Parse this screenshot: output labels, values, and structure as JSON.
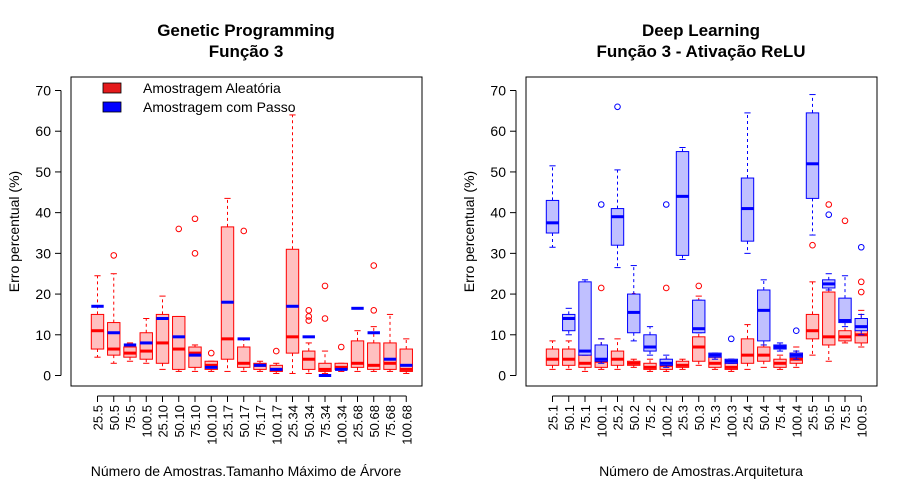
{
  "colors": {
    "aleatoria_fill": "#ffc0c0",
    "aleatoria_stroke": "#ff0000",
    "passo_fill": "#c0c0ff",
    "passo_stroke": "#0000ff",
    "aleatoria_legend": "#e41a1c",
    "passo_legend": "#0000ff"
  },
  "chart_data": [
    {
      "type": "boxplot",
      "title": [
        "Genetic Programming",
        "Função 3"
      ],
      "xlabel": "Número de Amostras.Tamanho Máximo de Árvore",
      "ylabel": "Erro percentual (%)",
      "ylim": [
        0,
        70
      ],
      "yticks": [
        0,
        10,
        20,
        30,
        40,
        50,
        60,
        70
      ],
      "legend": {
        "position": "top-left",
        "entries": [
          "Amostragem Aleatória",
          "Amostragem com Passo"
        ]
      },
      "categories": [
        "25.5",
        "50.5",
        "75.5",
        "100.5",
        "25.10",
        "50.10",
        "75.10",
        "100.10",
        "25.17",
        "50.17",
        "75.17",
        "100.17",
        "25.34",
        "50.34",
        "75.34",
        "100.34",
        "25.68",
        "50.68",
        "75.68",
        "100.68"
      ],
      "series": [
        {
          "name": "Amostragem Aleatória",
          "boxes": [
            {
              "min": 4.5,
              "q1": 6.5,
              "median": 11,
              "q3": 15,
              "max": 24.5,
              "outliers": []
            },
            {
              "min": 3,
              "q1": 5,
              "median": 6.5,
              "q3": 13,
              "max": 25,
              "outliers": [
                29.5
              ]
            },
            {
              "min": 3.5,
              "q1": 4.5,
              "median": 5.5,
              "q3": 7,
              "max": 8,
              "outliers": []
            },
            {
              "min": 3,
              "q1": 4,
              "median": 6,
              "q3": 10.5,
              "max": 14,
              "outliers": []
            },
            {
              "min": 1.5,
              "q1": 3,
              "median": 8,
              "q3": 15,
              "max": 19.5,
              "outliers": []
            },
            {
              "min": 1,
              "q1": 1.5,
              "median": 6.5,
              "q3": 14.5,
              "max": 14.5,
              "outliers": [
                36
              ]
            },
            {
              "min": 1,
              "q1": 2,
              "median": 5.5,
              "q3": 7,
              "max": 7.5,
              "outliers": [
                30,
                38.5
              ]
            },
            {
              "min": 1,
              "q1": 1.5,
              "median": 2.5,
              "q3": 3.5,
              "max": 3.5,
              "outliers": [
                5.5
              ]
            },
            {
              "min": 1,
              "q1": 4,
              "median": 9,
              "q3": 36.5,
              "max": 43.5,
              "outliers": []
            },
            {
              "min": 1,
              "q1": 2,
              "median": 3,
              "q3": 7,
              "max": 9,
              "outliers": [
                35.5
              ]
            },
            {
              "min": 1,
              "q1": 1.5,
              "median": 2.5,
              "q3": 3,
              "max": 3.5,
              "outliers": []
            },
            {
              "min": 0.5,
              "q1": 1,
              "median": 1.5,
              "q3": 2.5,
              "max": 3,
              "outliers": [
                6
              ]
            },
            {
              "min": 0.5,
              "q1": 5.5,
              "median": 9.5,
              "q3": 31,
              "max": 64,
              "outliers": []
            },
            {
              "min": 0.5,
              "q1": 1.5,
              "median": 4,
              "q3": 6,
              "max": 8,
              "outliers": [
                13.5,
                14.5,
                16
              ]
            },
            {
              "min": 0.5,
              "q1": 1,
              "median": 1.5,
              "q3": 3,
              "max": 6,
              "outliers": [
                14,
                22
              ]
            },
            {
              "min": 1,
              "q1": 1.5,
              "median": 2,
              "q3": 3,
              "max": 3,
              "outliers": [
                7
              ]
            },
            {
              "min": 1,
              "q1": 2,
              "median": 3,
              "q3": 8.5,
              "max": 11,
              "outliers": []
            },
            {
              "min": 1,
              "q1": 1.5,
              "median": 2.5,
              "q3": 8,
              "max": 12,
              "outliers": [
                16,
                27
              ]
            },
            {
              "min": 1,
              "q1": 1.5,
              "median": 3,
              "q3": 8,
              "max": 15,
              "outliers": []
            },
            {
              "min": 0.5,
              "q1": 1,
              "median": 1.5,
              "q3": 6.5,
              "max": 9,
              "outliers": []
            }
          ]
        },
        {
          "name": "Amostragem com Passo",
          "values": [
            17,
            10.5,
            7.5,
            8,
            14,
            9.5,
            5,
            2,
            18,
            9,
            2.5,
            1.5,
            17,
            9.5,
            0,
            1.5,
            16.5,
            10.5,
            4,
            2.5
          ]
        }
      ]
    },
    {
      "type": "boxplot",
      "title": [
        "Deep Learning",
        "Função 3 - Ativação ReLU"
      ],
      "xlabel": "Número de Amostras.Arquitetura",
      "ylabel": "Erro percentual (%)",
      "ylim": [
        0,
        70
      ],
      "yticks": [
        0,
        10,
        20,
        30,
        40,
        50,
        60,
        70
      ],
      "categories": [
        "25.1",
        "50.1",
        "75.1",
        "100.1",
        "25.2",
        "50.2",
        "75.2",
        "100.2",
        "25.3",
        "50.3",
        "75.3",
        "100.3",
        "25.4",
        "50.4",
        "75.4",
        "100.4",
        "25.5",
        "50.5",
        "75.5",
        "100.5"
      ],
      "series": [
        {
          "name": "Amostragem Aleatória",
          "boxes": [
            {
              "min": 1.5,
              "q1": 2.5,
              "median": 4,
              "q3": 6.5,
              "max": 8.5,
              "outliers": []
            },
            {
              "min": 1.5,
              "q1": 2.5,
              "median": 4,
              "q3": 6.5,
              "max": 8.5,
              "outliers": []
            },
            {
              "min": 1,
              "q1": 2,
              "median": 3,
              "q3": 5,
              "max": 7,
              "outliers": [
                21.5
              ]
            },
            {
              "min": 1.5,
              "q1": 2,
              "median": 3.5,
              "q3": 6,
              "max": 9,
              "outliers": [
                21.5
              ]
            },
            {
              "min": 1.5,
              "q1": 2.5,
              "median": 4,
              "q3": 6,
              "max": 9,
              "outliers": []
            },
            {
              "min": 2,
              "q1": 2.5,
              "median": 3,
              "q3": 3.5,
              "max": 4,
              "outliers": [
                19.5
              ]
            },
            {
              "min": 1,
              "q1": 1.5,
              "median": 2,
              "q3": 3,
              "max": 4,
              "outliers": [
                7
              ]
            },
            {
              "min": 1,
              "q1": 1.5,
              "median": 2.5,
              "q3": 3.5,
              "max": 4,
              "outliers": [
                21.5
              ]
            },
            {
              "min": 1.5,
              "q1": 2,
              "median": 2.5,
              "q3": 3.5,
              "max": 4,
              "outliers": []
            },
            {
              "min": 2.5,
              "q1": 3.5,
              "median": 7,
              "q3": 9.5,
              "max": 19.5,
              "outliers": [
                22
              ]
            },
            {
              "min": 1.5,
              "q1": 2,
              "median": 3,
              "q3": 4.5,
              "max": 5,
              "outliers": []
            },
            {
              "min": 1,
              "q1": 1.5,
              "median": 2,
              "q3": 3,
              "max": 4,
              "outliers": []
            },
            {
              "min": 1.5,
              "q1": 3,
              "median": 5,
              "q3": 9,
              "max": 12.5,
              "outliers": []
            },
            {
              "min": 2,
              "q1": 3.5,
              "median": 5,
              "q3": 7,
              "max": 9,
              "outliers": [
                18
              ]
            },
            {
              "min": 1.5,
              "q1": 2,
              "median": 3,
              "q3": 4,
              "max": 5,
              "outliers": []
            },
            {
              "min": 2,
              "q1": 3,
              "median": 4,
              "q3": 5.5,
              "max": 7,
              "outliers": []
            },
            {
              "min": 5,
              "q1": 9,
              "median": 11,
              "q3": 15,
              "max": 23,
              "outliers": [
                32
              ]
            },
            {
              "min": 3.5,
              "q1": 7.5,
              "median": 9.5,
              "q3": 20.5,
              "max": 22.5,
              "outliers": [
                42
              ]
            },
            {
              "min": 8,
              "q1": 8.5,
              "median": 9.5,
              "q3": 11,
              "max": 13,
              "outliers": [
                15,
                38
              ]
            },
            {
              "min": 7,
              "q1": 8,
              "median": 10,
              "q3": 13,
              "max": 16,
              "outliers": [
                20.5,
                23
              ]
            }
          ]
        },
        {
          "name": "Amostragem com Passo",
          "boxes": [
            {
              "min": 31.5,
              "q1": 35,
              "median": 37.5,
              "q3": 43,
              "max": 51.5,
              "outliers": []
            },
            {
              "min": 10,
              "q1": 11,
              "median": 14,
              "q3": 15,
              "max": 16.5,
              "outliers": []
            },
            {
              "min": 5,
              "q1": 5,
              "median": 6,
              "q3": 23,
              "max": 23.5,
              "outliers": []
            },
            {
              "min": 3,
              "q1": 3.5,
              "median": 4,
              "q3": 7.5,
              "max": 9,
              "outliers": [
                42
              ]
            },
            {
              "min": 26.5,
              "q1": 32,
              "median": 39,
              "q3": 41,
              "max": 50.5,
              "outliers": [
                66
              ]
            },
            {
              "min": 8.5,
              "q1": 10.5,
              "median": 15.5,
              "q3": 20,
              "max": 27,
              "outliers": []
            },
            {
              "min": 5,
              "q1": 6,
              "median": 7,
              "q3": 10,
              "max": 12,
              "outliers": []
            },
            {
              "min": 2,
              "q1": 2.5,
              "median": 3,
              "q3": 4,
              "max": 5,
              "outliers": [
                42
              ]
            },
            {
              "min": 28.5,
              "q1": 29.5,
              "median": 44,
              "q3": 55,
              "max": 56,
              "outliers": []
            },
            {
              "min": 10.5,
              "q1": 10.5,
              "median": 11.5,
              "q3": 18.5,
              "max": 18.5,
              "outliers": []
            },
            {
              "min": 4,
              "q1": 4.5,
              "median": 5,
              "q3": 5.5,
              "max": 5.5,
              "outliers": []
            },
            {
              "min": 3,
              "q1": 3,
              "median": 3.5,
              "q3": 4,
              "max": 4,
              "outliers": [
                9
              ]
            },
            {
              "min": 30,
              "q1": 33,
              "median": 41,
              "q3": 48.5,
              "max": 64.5,
              "outliers": []
            },
            {
              "min": 7.5,
              "q1": 8.5,
              "median": 16,
              "q3": 21,
              "max": 23.5,
              "outliers": []
            },
            {
              "min": 6,
              "q1": 6.5,
              "median": 7,
              "q3": 7.5,
              "max": 8,
              "outliers": []
            },
            {
              "min": 4,
              "q1": 4.5,
              "median": 5,
              "q3": 5.5,
              "max": 6,
              "outliers": [
                11
              ]
            },
            {
              "min": 34.5,
              "q1": 43.5,
              "median": 52,
              "q3": 64.5,
              "max": 69,
              "outliers": []
            },
            {
              "min": 21,
              "q1": 21.5,
              "median": 22.5,
              "q3": 23.5,
              "max": 25,
              "outliers": [
                39.5
              ]
            },
            {
              "min": 12,
              "q1": 13,
              "median": 13.5,
              "q3": 19,
              "max": 24.5,
              "outliers": []
            },
            {
              "min": 10,
              "q1": 11,
              "median": 12,
              "q3": 14,
              "max": 15,
              "outliers": [
                31.5
              ]
            }
          ]
        }
      ]
    }
  ]
}
